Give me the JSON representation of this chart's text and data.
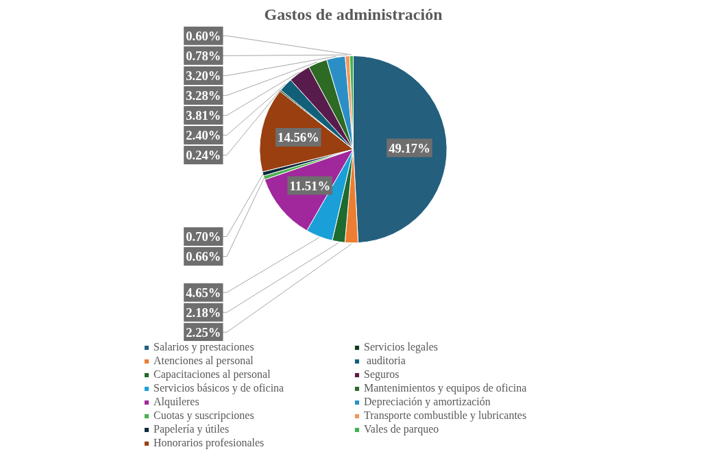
{
  "chart_data": {
    "type": "pie",
    "title": "Gastos de administración",
    "categories": [
      "Salarios y prestaciones",
      "Atenciones al personal",
      "Capacitaciones al personal",
      "Servicios básicos y de oficina",
      "Alquileres",
      "Cuotas y suscripciones",
      "Papelería y útiles",
      "Honorarios profesionales",
      "Servicios legales",
      " auditoria",
      "Seguros",
      "Mantenimientos y equipos de oficina",
      "Depreciación y amortización",
      "Transporte combustible y lubricantes",
      "Vales de parqueo"
    ],
    "values": [
      49.17,
      2.25,
      2.18,
      4.65,
      11.51,
      0.66,
      0.7,
      14.56,
      0.24,
      2.4,
      3.81,
      3.28,
      3.2,
      0.78,
      0.6
    ],
    "value_labels": [
      "49.17%",
      "2.25%",
      "2.18%",
      "4.65%",
      "11.51%",
      "0.66%",
      "0.70%",
      "14.56%",
      "0.24%",
      "2.40%",
      "3.81%",
      "3.28%",
      "3.20%",
      "0.78%",
      "0.60%"
    ],
    "colors": [
      "#245f7e",
      "#ed7d31",
      "#1e6b30",
      "#1b9fd8",
      "#a0289c",
      "#4caf50",
      "#0c2a3d",
      "#9a3f10",
      "#0f3a18",
      "#125f7a",
      "#581c4c",
      "#2d6a24",
      "#2b8fc6",
      "#f4955c",
      "#3cb44b"
    ],
    "legend": "bottom"
  }
}
